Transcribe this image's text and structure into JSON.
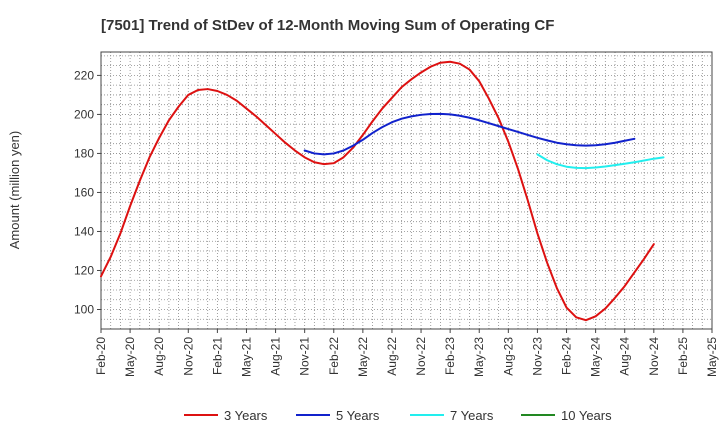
{
  "chart_data": {
    "type": "line",
    "title": "[7501]  Trend of StDev of 12-Month Moving Sum of Operating CF",
    "xlabel": "",
    "ylabel": "Amount (million yen)",
    "ylim": [
      90,
      232
    ],
    "yticks": [
      100,
      120,
      140,
      160,
      180,
      200,
      220
    ],
    "xtick_labels": [
      "Feb-20",
      "May-20",
      "Aug-20",
      "Nov-20",
      "Feb-21",
      "May-21",
      "Aug-21",
      "Nov-21",
      "Feb-22",
      "May-22",
      "Aug-22",
      "Nov-22",
      "Feb-23",
      "May-23",
      "Aug-23",
      "Nov-23",
      "Feb-24",
      "May-24",
      "Aug-24",
      "Nov-24",
      "Feb-25",
      "May-25"
    ],
    "grid": true,
    "legend_position": "bottom",
    "series": [
      {
        "name": "3 Years",
        "color": "#dd1111",
        "start_index": 0,
        "values": [
          117,
          127,
          139,
          153,
          166,
          178,
          188,
          197,
          204,
          210,
          212.5,
          213,
          212,
          210,
          207,
          203,
          199,
          194.5,
          190,
          185.5,
          181.5,
          178,
          175.5,
          174.5,
          175,
          178,
          183,
          189.5,
          196.5,
          203,
          208.5,
          214,
          218,
          221.5,
          224.5,
          226.5,
          227,
          226,
          223,
          217,
          208,
          198,
          186,
          172,
          156,
          139,
          124,
          111,
          101,
          96,
          94.5,
          96.5,
          100.5,
          106,
          112,
          119,
          126,
          133.5
        ]
      },
      {
        "name": "5 Years",
        "color": "#1122cc",
        "start_index": 21,
        "values": [
          181.5,
          180,
          179.5,
          180,
          181.5,
          184,
          187,
          190.5,
          193.5,
          196,
          197.8,
          199,
          199.8,
          200.2,
          200.3,
          200,
          199.3,
          198.3,
          197,
          195.5,
          194,
          192.5,
          191,
          189.5,
          188,
          186.7,
          185.5,
          184.7,
          184.2,
          184,
          184.2,
          184.7,
          185.5,
          186.5,
          187.5
        ]
      },
      {
        "name": "7 Years",
        "color": "#22eeee",
        "start_index": 45,
        "values": [
          179.5,
          176.5,
          174.5,
          173.2,
          172.6,
          172.5,
          172.8,
          173.3,
          174,
          174.7,
          175.5,
          176.4,
          177.3,
          178
        ]
      },
      {
        "name": "10 Years",
        "color": "#228822",
        "start_index": 0,
        "values": []
      }
    ]
  }
}
